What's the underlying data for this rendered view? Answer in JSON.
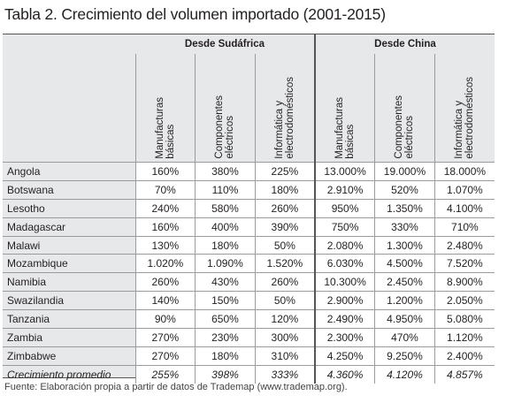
{
  "title": "Tabla 2. Crecimiento del volumen importado (2001-2015)",
  "groups": [
    "Desde Sudáfrica",
    "Desde China"
  ],
  "columns": [
    "Manufacturas\nbásicas",
    "Componentes\neléctricos",
    "Informática y\nelectrodomésticos",
    "Manufacturas\nbásicas",
    "Componentes\neléctricos",
    "Informática y\nelectrodomésticos"
  ],
  "rows": [
    {
      "country": "Angola",
      "values": [
        "160%",
        "380%",
        "225%",
        "13.000%",
        "19.000%",
        "18.000%"
      ]
    },
    {
      "country": "Botswana",
      "values": [
        "70%",
        "110%",
        "180%",
        "2.910%",
        "520%",
        "1.070%"
      ]
    },
    {
      "country": "Lesotho",
      "values": [
        "240%",
        "580%",
        "260%",
        "950%",
        "1.350%",
        "4.100%"
      ]
    },
    {
      "country": "Madagascar",
      "values": [
        "160%",
        "400%",
        "390%",
        "750%",
        "330%",
        "710%"
      ]
    },
    {
      "country": "Malawi",
      "values": [
        "130%",
        "180%",
        "50%",
        "2.080%",
        "1.300%",
        "2.480%"
      ]
    },
    {
      "country": "Mozambique",
      "values": [
        "1.020%",
        "1.090%",
        "1.520%",
        "6.030%",
        "4.500%",
        "7.520%"
      ]
    },
    {
      "country": "Namibia",
      "values": [
        "260%",
        "430%",
        "260%",
        "10.300%",
        "2.450%",
        "8.900%"
      ]
    },
    {
      "country": "Swazilandia",
      "values": [
        "140%",
        "150%",
        "50%",
        "2.900%",
        "1.200%",
        "2.050%"
      ]
    },
    {
      "country": "Tanzania",
      "values": [
        "90%",
        "650%",
        "120%",
        "2.490%",
        "4.950%",
        "5.080%"
      ]
    },
    {
      "country": "Zambia",
      "values": [
        "270%",
        "230%",
        "300%",
        "2.300%",
        "470%",
        "1.120%"
      ]
    },
    {
      "country": "Zimbabwe",
      "values": [
        "270%",
        "180%",
        "310%",
        "4.250%",
        "9.250%",
        "2.400%"
      ]
    }
  ],
  "average": {
    "label": "Crecimiento promedio",
    "values": [
      "255%",
      "398%",
      "333%",
      "4.360%",
      "4.120%",
      "4.857%"
    ]
  },
  "source": "Fuente: Elaboración propia a partir de datos de Trademap (www.trademap.org)."
}
